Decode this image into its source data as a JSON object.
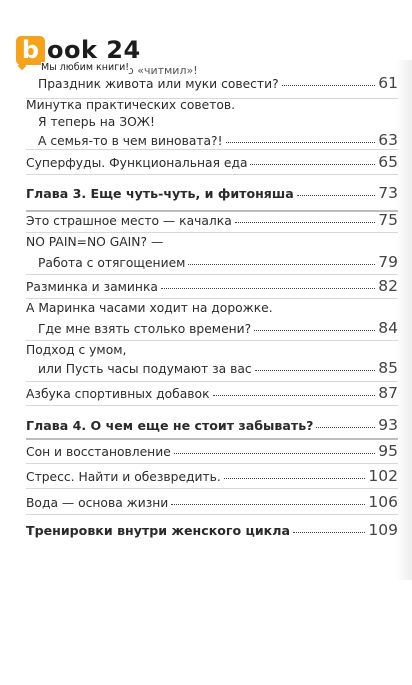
{
  "logo": {
    "letter": "b",
    "text": "ook 24",
    "slogan": "Мы любим книги!",
    "slogan_tail": "о «читмил»!"
  },
  "toc": [
    {
      "lines": [
        {
          "text": "Праздник живота или муки совести?",
          "page": "61"
        }
      ]
    },
    {
      "lines": [
        {
          "text": "Минутка практических советов."
        },
        {
          "text": "Я теперь на ЗОЖ!"
        },
        {
          "text": "А семья-то в чем виновата?!",
          "page": "63"
        }
      ]
    },
    {
      "lines": [
        {
          "text": "Суперфуды. Функциональная еда",
          "page": "65"
        }
      ]
    },
    {
      "chapter": true,
      "lines": [
        {
          "text": "Глава 3. Еще чуть-чуть, и фитоняша",
          "page": "73"
        }
      ]
    },
    {
      "lines": [
        {
          "text": "Это страшное место — качалка",
          "page": "75"
        }
      ]
    },
    {
      "lines": [
        {
          "text": "NO PAIN=NO GAIN? —"
        },
        {
          "text": "Работа с отягощением",
          "page": "79"
        }
      ]
    },
    {
      "lines": [
        {
          "text": "Разминка и заминка",
          "page": "82"
        }
      ]
    },
    {
      "lines": [
        {
          "text": "А Маринка часами ходит на дорожке."
        },
        {
          "text": "Где мне взять столько времени?",
          "page": "84"
        }
      ]
    },
    {
      "lines": [
        {
          "text": "Подход с умом,"
        },
        {
          "text": "или Пусть часы подумают за вас",
          "page": "85"
        }
      ]
    },
    {
      "lines": [
        {
          "text": "Азбука спортивных добавок",
          "page": "87"
        }
      ]
    },
    {
      "chapter": true,
      "lines": [
        {
          "text": "Глава 4. О чем еще не стоит забывать?",
          "page": "93"
        }
      ]
    },
    {
      "lines": [
        {
          "text": "Сон и восстановление",
          "page": "95"
        }
      ]
    },
    {
      "lines": [
        {
          "text": "Стресс. Найти и обезвредить.",
          "page": "102"
        }
      ]
    },
    {
      "lines": [
        {
          "text": "Вода — основа жизни",
          "page": "106"
        }
      ]
    },
    {
      "chapter": true,
      "lines": [
        {
          "text": "Тренировки внутри женского цикла",
          "page": "109"
        }
      ]
    }
  ]
}
